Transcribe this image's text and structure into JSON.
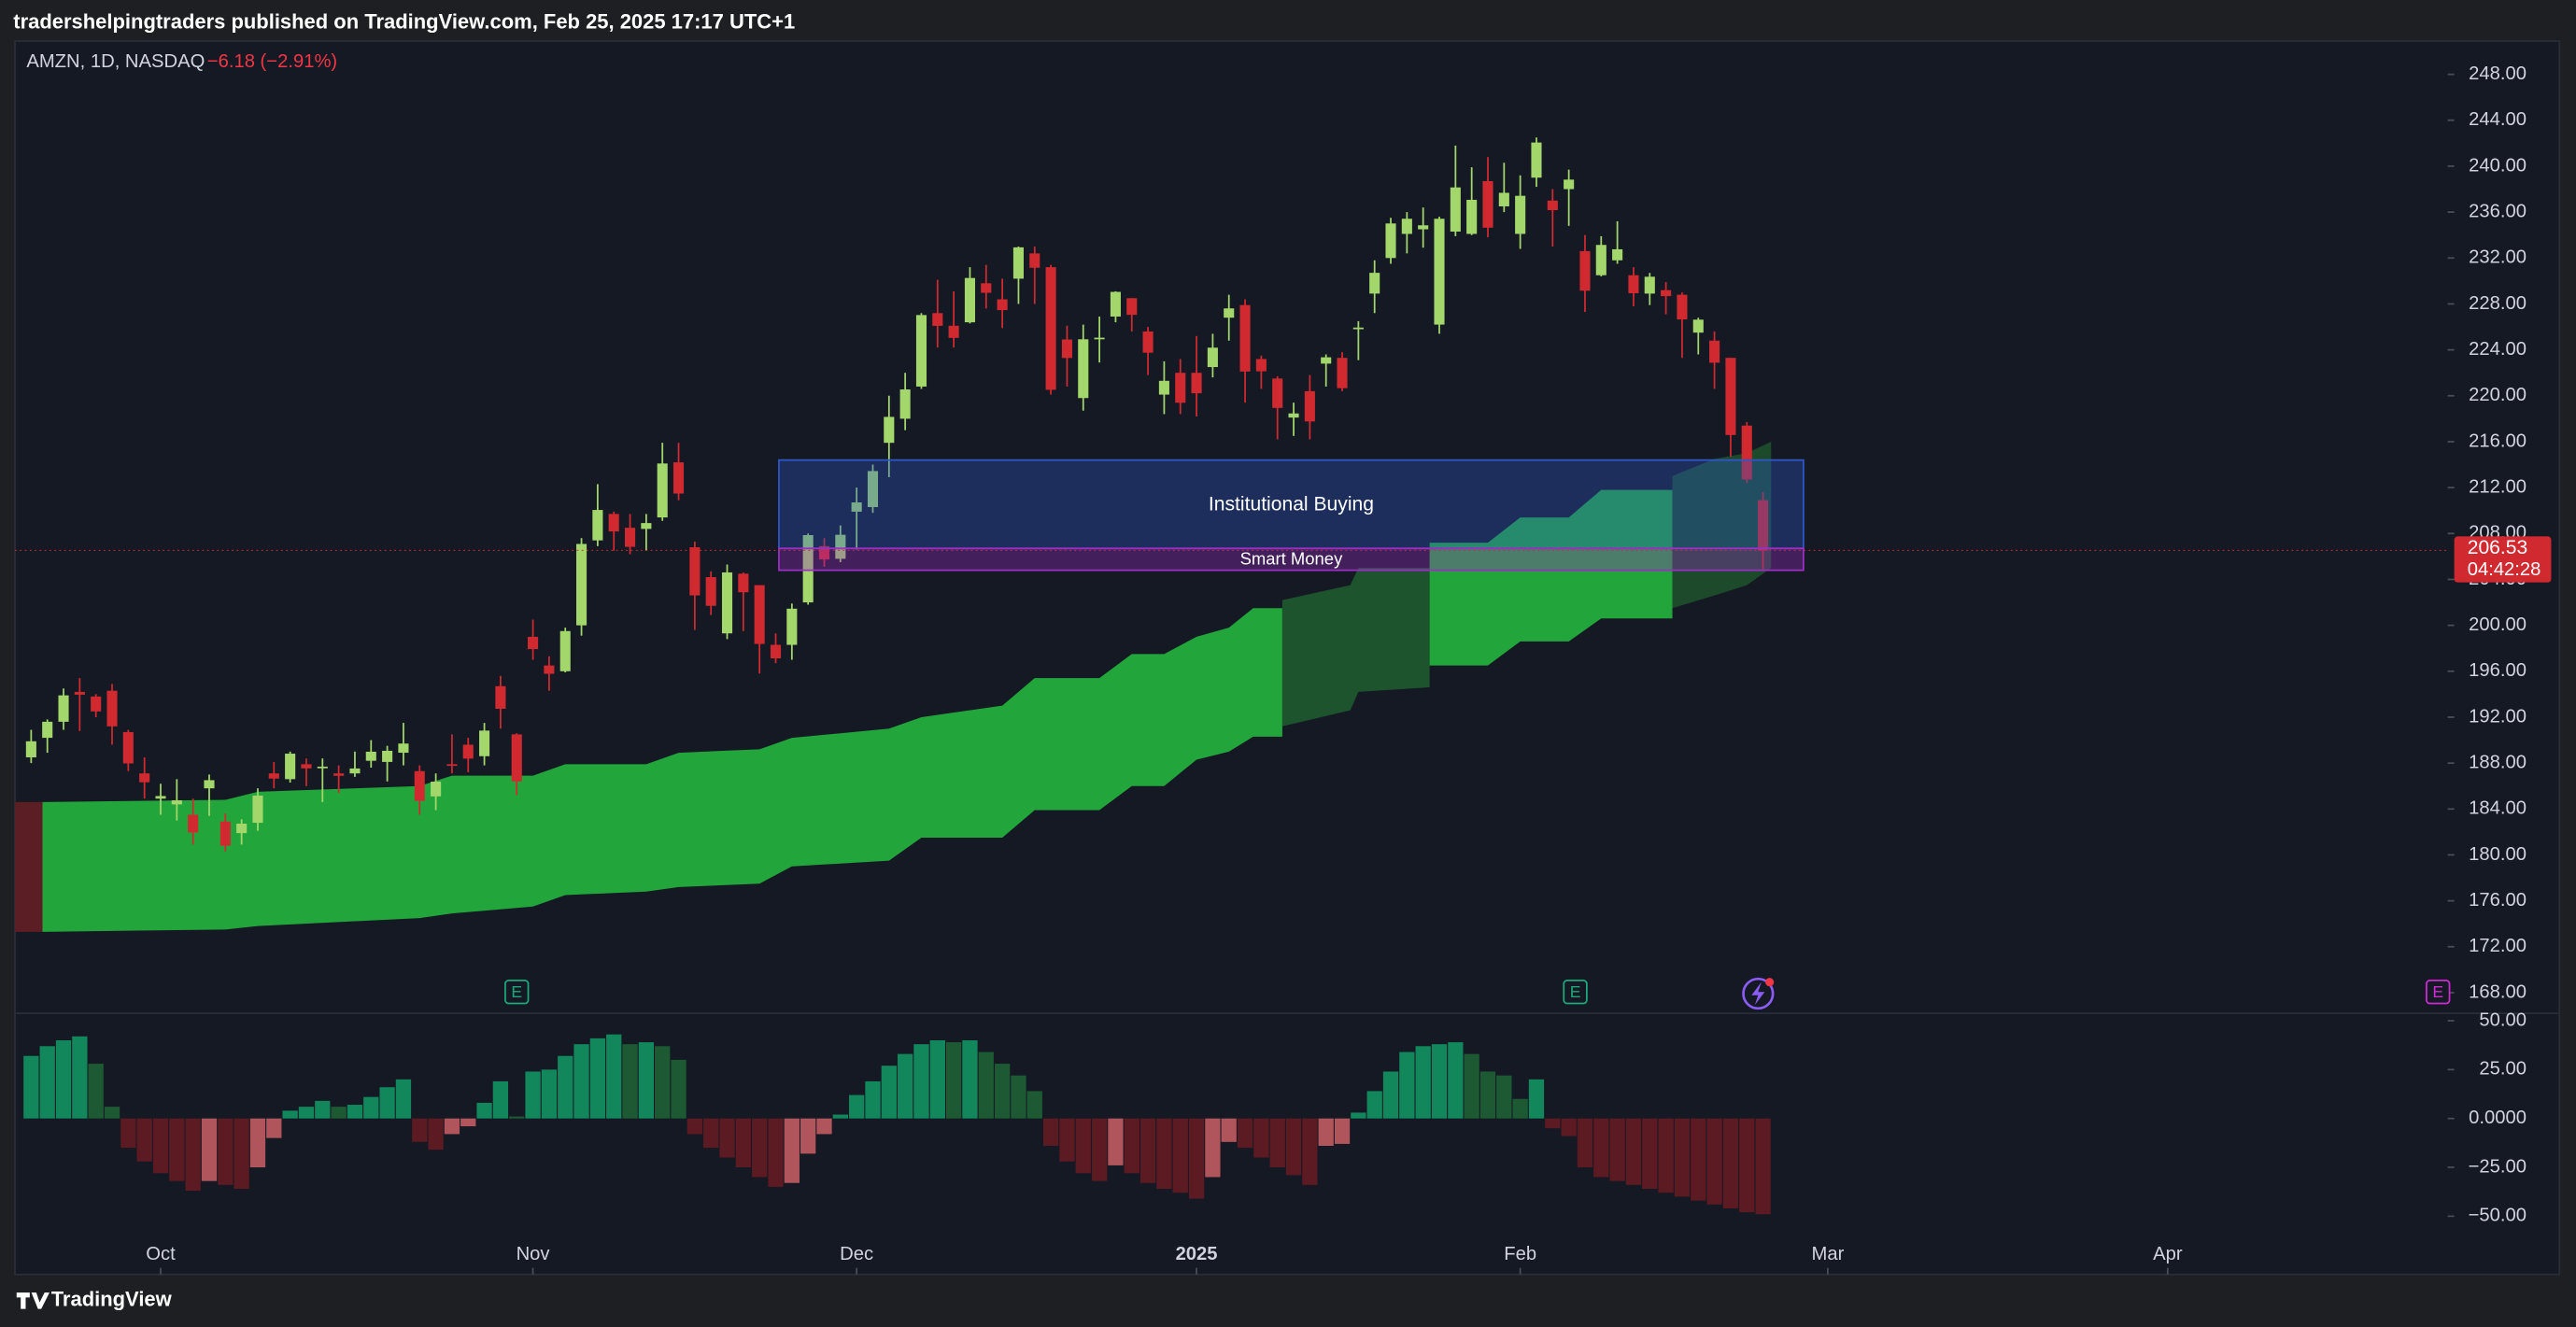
{
  "header": {
    "published": "tradershelpingtraders published on TradingView.com, Feb 25, 2025 17:17 UTC+1"
  },
  "footer": {
    "brand": "TradingView"
  },
  "chart_data": [
    {
      "type": "candlestick",
      "title": "AMZN, 1D, NASDAQ",
      "change_label": "−6.18 (−2.91%)",
      "xlim": [
        -1,
        149.3
      ],
      "xticks": [
        {
          "value": 8,
          "label": "Oct"
        },
        {
          "value": 31,
          "label": "Nov"
        },
        {
          "value": 51,
          "label": "Dec"
        },
        {
          "value": 72,
          "label": "2025"
        },
        {
          "value": 92,
          "label": "Feb"
        },
        {
          "value": 111,
          "label": "Mar"
        },
        {
          "value": 132,
          "label": "Apr"
        }
      ],
      "ylim": [
        166.2,
        250.9
      ],
      "yticks": [
        {
          "value": 168,
          "label": "168.00"
        },
        {
          "value": 172,
          "label": "172.00"
        },
        {
          "value": 176,
          "label": "176.00"
        },
        {
          "value": 180,
          "label": "180.00"
        },
        {
          "value": 184,
          "label": "184.00"
        },
        {
          "value": 188,
          "label": "188.00"
        },
        {
          "value": 192,
          "label": "192.00"
        },
        {
          "value": 196,
          "label": "196.00"
        },
        {
          "value": 200,
          "label": "200.00"
        },
        {
          "value": 204,
          "label": "204.00"
        },
        {
          "value": 208,
          "label": "208.00"
        },
        {
          "value": 212,
          "label": "212.00"
        },
        {
          "value": 216,
          "label": "216.00"
        },
        {
          "value": 220,
          "label": "220.00"
        },
        {
          "value": 224,
          "label": "224.00"
        },
        {
          "value": 228,
          "label": "228.00"
        },
        {
          "value": 232,
          "label": "232.00"
        },
        {
          "value": 236,
          "label": "236.00"
        },
        {
          "value": 240,
          "label": "240.00"
        },
        {
          "value": 244,
          "label": "244.00"
        },
        {
          "value": 248,
          "label": "248.00"
        }
      ],
      "grid": false,
      "up_color": "#a3d76c",
      "down_color": "#d02a30",
      "open": [
        188.5,
        190.2,
        191.6,
        194.2,
        193.8,
        194.3,
        190.7,
        187.1,
        184.9,
        184.4,
        183.5,
        185.8,
        182.9,
        181.9,
        182.8,
        187.1,
        186.6,
        187.9,
        187.6,
        187.1,
        187.1,
        188.2,
        188.1,
        188.9,
        187.3,
        185.1,
        187.9,
        189.6,
        188.6,
        194.7,
        190.5,
        199.0,
        196.5,
        196.0,
        200.0,
        207.4,
        209.7,
        208.5,
        208.4,
        209.4,
        214.2,
        206.8,
        204.2,
        199.3,
        204.5,
        203.5,
        198.3,
        198.3,
        202.0,
        206.9,
        205.8,
        209.9,
        210.3,
        215.9,
        218.0,
        220.8,
        227.2,
        226.1,
        226.4,
        229.8,
        228.4,
        230.2,
        232.4,
        231.2,
        224.9,
        219.8,
        225.0,
        226.9,
        228.5,
        225.6,
        220.1,
        222.0,
        222.0,
        222.5,
        226.8,
        227.9,
        223.2,
        221.5,
        218.1,
        220.4,
        222.8,
        223.3,
        225.8,
        228.9,
        232.0,
        234.1,
        234.5,
        226.2,
        234.3,
        234.1,
        238.7,
        236.5,
        234.1,
        239.0,
        237.0,
        238.0,
        232.6,
        230.5,
        231.8,
        230.5,
        228.9,
        229.2,
        228.8,
        225.5,
        224.8,
        223.3,
        217.4,
        210.9
      ],
      "high": [
        190.9,
        191.8,
        194.5,
        195.4,
        194.0,
        194.9,
        190.9,
        188.5,
        186.2,
        186.6,
        184.9,
        187.0,
        183.6,
        183.1,
        185.8,
        188.1,
        189.0,
        188.4,
        188.4,
        187.8,
        189.0,
        190.0,
        189.5,
        191.5,
        187.8,
        187.1,
        190.5,
        190.2,
        191.5,
        195.6,
        190.6,
        200.5,
        197.3,
        199.8,
        207.6,
        212.3,
        209.9,
        209.7,
        209.7,
        215.9,
        215.9,
        207.3,
        204.7,
        205.3,
        204.6,
        203.5,
        199.3,
        201.9,
        208.0,
        207.6,
        208.7,
        212.0,
        214.0,
        220.0,
        222.0,
        227.2,
        230.1,
        229.1,
        231.2,
        231.4,
        230.2,
        233.0,
        233.0,
        231.4,
        226.1,
        226.2,
        226.9,
        229.1,
        228.5,
        226.0,
        223.0,
        223.2,
        225.2,
        225.4,
        228.8,
        228.4,
        223.5,
        221.7,
        219.4,
        221.8,
        223.6,
        223.8,
        226.5,
        231.8,
        235.5,
        236.0,
        236.4,
        235.6,
        241.8,
        239.9,
        240.8,
        240.3,
        239.2,
        242.5,
        238.0,
        239.7,
        234.0,
        233.9,
        235.2,
        231.2,
        230.7,
        229.9,
        229.0,
        226.8,
        225.6,
        223.3,
        217.7,
        211.6
      ],
      "low": [
        188.0,
        188.9,
        190.9,
        190.8,
        192.0,
        189.6,
        187.3,
        184.9,
        183.5,
        183.0,
        180.9,
        183.4,
        180.3,
        180.9,
        182.1,
        185.8,
        186.3,
        186.0,
        184.6,
        185.4,
        186.8,
        187.6,
        186.4,
        187.8,
        183.5,
        183.9,
        187.1,
        187.2,
        187.8,
        191.0,
        185.2,
        197.0,
        194.3,
        195.9,
        199.1,
        206.9,
        206.5,
        206.2,
        206.5,
        209.1,
        210.9,
        199.6,
        200.9,
        198.8,
        199.5,
        195.8,
        196.7,
        197.0,
        201.8,
        205.1,
        205.5,
        206.6,
        209.8,
        212.9,
        217.0,
        220.6,
        224.2,
        224.2,
        226.3,
        227.6,
        225.9,
        228.0,
        228.0,
        220.1,
        220.8,
        218.7,
        222.9,
        226.4,
        225.6,
        221.8,
        218.4,
        218.4,
        218.2,
        221.6,
        224.8,
        219.4,
        220.6,
        216.2,
        216.5,
        216.2,
        220.8,
        220.4,
        223.1,
        227.2,
        231.5,
        232.4,
        232.9,
        225.4,
        233.9,
        234.0,
        233.8,
        236.0,
        232.8,
        238.2,
        233.0,
        234.8,
        227.3,
        230.4,
        231.5,
        227.8,
        227.9,
        227.1,
        223.3,
        223.6,
        220.6,
        214.7,
        212.4,
        204.9
      ],
      "close": [
        189.9,
        191.6,
        193.9,
        193.96,
        192.5,
        191.2,
        187.97,
        186.33,
        185.13,
        184.76,
        181.96,
        186.51,
        180.8,
        182.72,
        185.17,
        186.65,
        188.82,
        187.54,
        187.69,
        186.89,
        187.53,
        188.99,
        189.07,
        189.7,
        184.71,
        186.38,
        187.83,
        188.39,
        190.83,
        192.73,
        186.4,
        197.93,
        195.78,
        199.5,
        207.09,
        210.05,
        208.18,
        206.84,
        208.91,
        214.1,
        211.48,
        202.61,
        201.7,
        204.61,
        202.88,
        198.38,
        197.12,
        201.45,
        207.86,
        205.74,
        207.89,
        210.71,
        213.44,
        218.16,
        220.55,
        227.03,
        226.09,
        225.04,
        230.26,
        228.97,
        227.46,
        232.93,
        231.15,
        220.52,
        223.29,
        224.92,
        225.06,
        229.05,
        227.05,
        223.75,
        221.3,
        219.39,
        220.22,
        224.19,
        227.61,
        222.11,
        222.13,
        218.94,
        218.46,
        217.76,
        223.35,
        220.66,
        225.94,
        230.71,
        235.01,
        235.42,
        234.85,
        235.42,
        238.15,
        237.07,
        234.64,
        237.68,
        237.42,
        242.06,
        236.17,
        238.83,
        229.15,
        233.14,
        232.76,
        228.93,
        230.37,
        228.68,
        226.65,
        226.63,
        222.88,
        216.58,
        212.71,
        206.53
      ],
      "countdown": "04:42:28",
      "cloud": [
        {
          "color": "#5b1e25",
          "x": [
            -1,
            0.7
          ],
          "upper": [
            184.6,
            184.6
          ],
          "lower": [
            173.3,
            173.3
          ]
        },
        {
          "color": "#22a63b",
          "x": [
            0.7,
            12,
            14,
            24,
            26,
            31,
            33,
            38,
            40,
            45,
            47,
            53,
            55,
            60,
            62,
            66,
            68,
            70,
            72,
            74,
            75.5,
            77.3
          ],
          "upper": [
            184.6,
            184.8,
            185.5,
            186.0,
            186.9,
            186.9,
            187.9,
            187.9,
            188.9,
            189.2,
            190.2,
            191.0,
            192.0,
            193.0,
            195.4,
            195.4,
            197.5,
            197.5,
            199.0,
            199.8,
            201.5,
            201.5
          ],
          "lower": [
            173.3,
            173.5,
            173.8,
            174.5,
            174.9,
            175.5,
            176.5,
            176.8,
            177.2,
            177.5,
            179.0,
            179.5,
            181.5,
            181.5,
            183.9,
            183.9,
            186.0,
            186.0,
            188.3,
            189.0,
            190.3,
            190.3
          ]
        },
        {
          "color": "#1d532d",
          "x": [
            77.3,
            81.5,
            82,
            86.4
          ],
          "upper": [
            202.2,
            203.5,
            205.0,
            205.0
          ],
          "lower": [
            191.2,
            192.6,
            194.2,
            194.6
          ]
        },
        {
          "color": "#22a63b",
          "x": [
            86.4,
            90,
            92,
            95,
            97,
            101.4
          ],
          "upper": [
            207.2,
            207.2,
            209.4,
            209.4,
            211.8,
            211.8
          ],
          "lower": [
            196.5,
            196.5,
            198.6,
            198.6,
            200.6,
            200.6
          ]
        },
        {
          "color": "#1d532d",
          "x": [
            101.4,
            104,
            106,
            107.5
          ],
          "upper": [
            213.0,
            214.5,
            215.0,
            216.0
          ],
          "lower": [
            201.5,
            202.6,
            203.5,
            205.0
          ]
        }
      ],
      "zones": [
        {
          "label": "Institutional Buying",
          "range": [
            206.7,
            214.4
          ],
          "x": [
            46.2,
            109.5
          ],
          "color": "#2f57c8"
        },
        {
          "label": "Smart Money",
          "range": [
            204.8,
            206.7
          ],
          "x": [
            46.2,
            109.5
          ],
          "color": "#9c2fc4"
        }
      ],
      "events": [
        {
          "x": 30,
          "label": "E",
          "color": "#1fa87a"
        },
        {
          "x": 95.4,
          "label": "E",
          "color": "#1fa87a"
        },
        {
          "x": 148.7,
          "label": "E",
          "color": "#d02ad6"
        }
      ]
    },
    {
      "type": "bar",
      "xlim": [
        -1,
        149.3
      ],
      "ylim": [
        -79.8,
        53.8
      ],
      "yticks": [
        {
          "value": 50,
          "label": "50.00"
        },
        {
          "value": 25,
          "label": "25.00"
        },
        {
          "value": 0,
          "label": "0.0000"
        },
        {
          "value": -25,
          "label": "−25.00"
        },
        {
          "value": -50,
          "label": "−50.00"
        }
      ],
      "colors": {
        "positive_rising": "#12875c",
        "positive_falling": "#1d5a33",
        "negative_falling": "#5c1a22",
        "negative_rising": "#b0555b"
      },
      "values": [
        32,
        37,
        40,
        42,
        28,
        6,
        -15,
        -22,
        -28,
        -32,
        -37,
        -32,
        -34,
        -36,
        -25,
        -10,
        4,
        6,
        9,
        6,
        7,
        11,
        16,
        20,
        -12,
        -16,
        -8,
        -4,
        8,
        19,
        1,
        24,
        25,
        32,
        38,
        41,
        43,
        38,
        39,
        37,
        30,
        -8,
        -15,
        -20,
        -25,
        -30,
        -35,
        -33,
        -18,
        -8,
        2,
        12,
        19,
        27,
        33,
        38,
        40,
        39,
        40,
        34,
        28,
        22,
        14,
        -14,
        -22,
        -28,
        -32,
        -24,
        -28,
        -33,
        -36,
        -38,
        -41,
        -30,
        -12,
        -15,
        -20,
        -25,
        -29,
        -34,
        -14,
        -13,
        3,
        14,
        24,
        34,
        37,
        38,
        39,
        33,
        24,
        22,
        10,
        20,
        -5,
        -9,
        -25,
        -30,
        -32,
        -34,
        -36,
        -38,
        -40,
        -42,
        -44,
        -46,
        -48,
        -49
      ]
    }
  ]
}
